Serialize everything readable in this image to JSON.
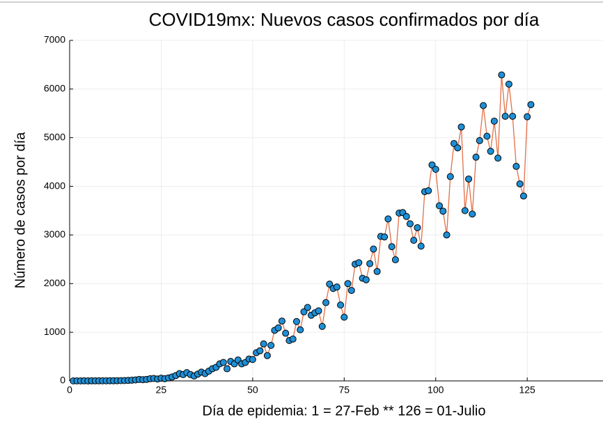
{
  "chart_data": {
    "type": "line",
    "title": "COVID19mx: Nuevos casos confirmados por día",
    "x_label": "Día de epidemia: 1 = 27-Feb ** 126 = 01-Julio",
    "y_label": "Número de casos por día",
    "x": [
      1,
      2,
      3,
      4,
      5,
      6,
      7,
      8,
      9,
      10,
      11,
      12,
      13,
      14,
      15,
      16,
      17,
      18,
      19,
      20,
      21,
      22,
      23,
      24,
      25,
      26,
      27,
      28,
      29,
      30,
      31,
      32,
      33,
      34,
      35,
      36,
      37,
      38,
      39,
      40,
      41,
      42,
      43,
      44,
      45,
      46,
      47,
      48,
      49,
      50,
      51,
      52,
      53,
      54,
      55,
      56,
      57,
      58,
      59,
      60,
      61,
      62,
      63,
      64,
      65,
      66,
      67,
      68,
      69,
      70,
      71,
      72,
      73,
      74,
      75,
      76,
      77,
      78,
      79,
      80,
      81,
      82,
      83,
      84,
      85,
      86,
      87,
      88,
      89,
      90,
      91,
      92,
      93,
      94,
      95,
      96,
      97,
      98,
      99,
      100,
      101,
      102,
      103,
      104,
      105,
      106,
      107,
      108,
      109,
      110,
      111,
      112,
      113,
      114,
      115,
      116,
      117,
      118,
      119,
      120,
      121,
      122,
      123,
      124,
      125,
      126
    ],
    "series": [
      {
        "color": "#e26f46",
        "marker_color": "#1f8fd6",
        "values": [
          0,
          0,
          0,
          1,
          0,
          1,
          1,
          1,
          2,
          2,
          3,
          3,
          4,
          5,
          7,
          10,
          15,
          20,
          30,
          25,
          30,
          45,
          50,
          40,
          55,
          45,
          60,
          80,
          110,
          150,
          130,
          170,
          130,
          100,
          140,
          180,
          150,
          200,
          250,
          280,
          350,
          380,
          250,
          400,
          350,
          430,
          350,
          380,
          450,
          440,
          580,
          620,
          760,
          520,
          730,
          1040,
          1090,
          1230,
          980,
          830,
          860,
          1220,
          1050,
          1420,
          1510,
          1350,
          1400,
          1440,
          1120,
          1610,
          1990,
          1900,
          1930,
          1560,
          1310,
          2000,
          1860,
          2400,
          2430,
          2110,
          2080,
          2410,
          2710,
          2250,
          2970,
          2960,
          3330,
          2760,
          2490,
          3450,
          3460,
          3380,
          3230,
          2890,
          3150,
          2770,
          3890,
          3910,
          4440,
          4350,
          3600,
          3490,
          3000,
          4200,
          4880,
          4790,
          5220,
          3500,
          4150,
          3430,
          4600,
          4940,
          5660,
          5030,
          4720,
          5340,
          4580,
          6290,
          5440,
          6100,
          5440,
          4410,
          4050,
          3800,
          5430,
          5680
        ]
      }
    ],
    "xlim": [
      0,
      145.7
    ],
    "xticks": [
      0,
      25,
      50,
      75,
      100,
      125
    ],
    "ylim": [
      0,
      7000
    ],
    "yticks": [
      0,
      1000,
      2000,
      3000,
      4000,
      5000,
      6000,
      7000
    ],
    "grid": true,
    "markers": true
  }
}
